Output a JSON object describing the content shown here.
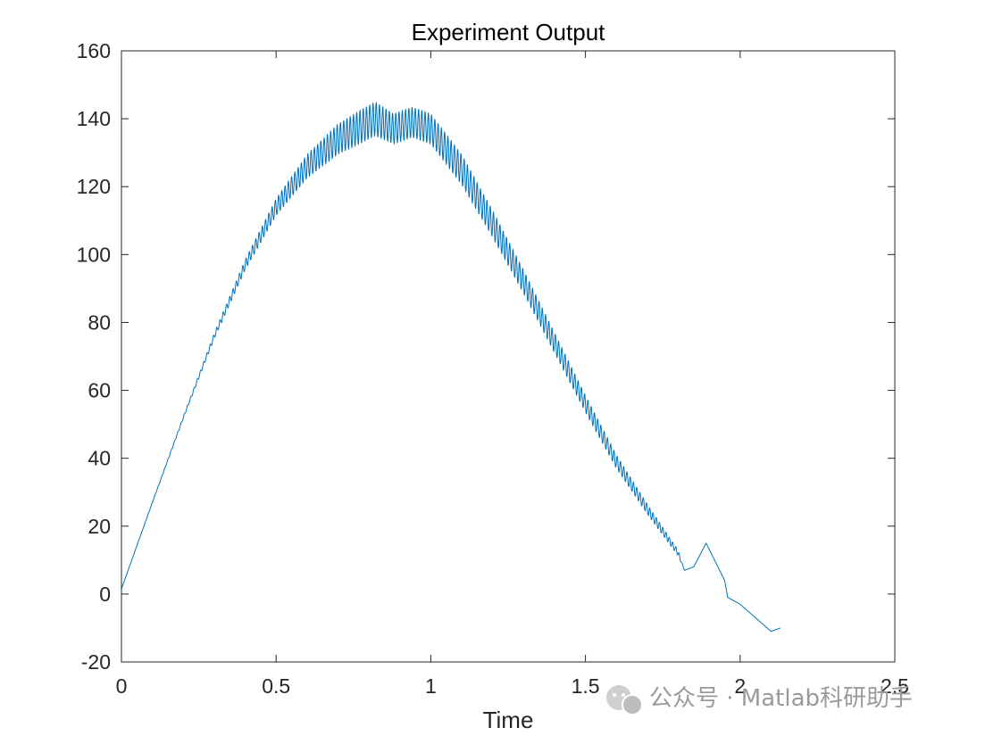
{
  "chart_data": {
    "type": "line",
    "title": "Experiment Output",
    "xlabel": "Time",
    "ylabel": "",
    "xlim": [
      0,
      2.5
    ],
    "ylim": [
      -20,
      160
    ],
    "xticks": [
      0,
      0.5,
      1,
      1.5,
      2,
      2.5
    ],
    "xtick_labels": [
      "0",
      "0.5",
      "1",
      "1.5",
      "2",
      "2.5"
    ],
    "yticks": [
      -20,
      0,
      20,
      40,
      60,
      80,
      100,
      120,
      140,
      160
    ],
    "ytick_labels": [
      "-20",
      "0",
      "20",
      "40",
      "60",
      "80",
      "100",
      "120",
      "140",
      "160"
    ],
    "grid": false,
    "box": true,
    "series": [
      {
        "color": "#0072BD",
        "x": [
          0,
          0.1,
          0.2,
          0.3,
          0.4,
          0.5,
          0.6,
          0.7,
          0.78,
          0.82,
          0.88,
          0.94,
          1.0,
          1.1,
          1.2,
          1.3,
          1.4,
          1.5,
          1.6,
          1.7,
          1.8,
          1.82,
          1.85,
          1.89,
          1.95,
          1.96,
          2.0,
          2.1,
          2.13
        ],
        "y": [
          1.5,
          27,
          52,
          76,
          97,
          114,
          126,
          134,
          138,
          140,
          137,
          139,
          137,
          125,
          109,
          92,
          74,
          56,
          39,
          25,
          12,
          7,
          8,
          15,
          4,
          -1,
          -3,
          -11,
          -10
        ],
        "oscillation": [
          0,
          0.1,
          0.3,
          0.8,
          1.5,
          2.5,
          3.5,
          4.5,
          5,
          5,
          4.5,
          4.5,
          4.5,
          4.5,
          4,
          3.5,
          3,
          2.5,
          2,
          1.5,
          0.8,
          0,
          0,
          0,
          0,
          0,
          0,
          0,
          0
        ]
      }
    ]
  },
  "watermark": {
    "icon": "wechat-icon",
    "text": "公众号 · Matlab科研助手"
  }
}
